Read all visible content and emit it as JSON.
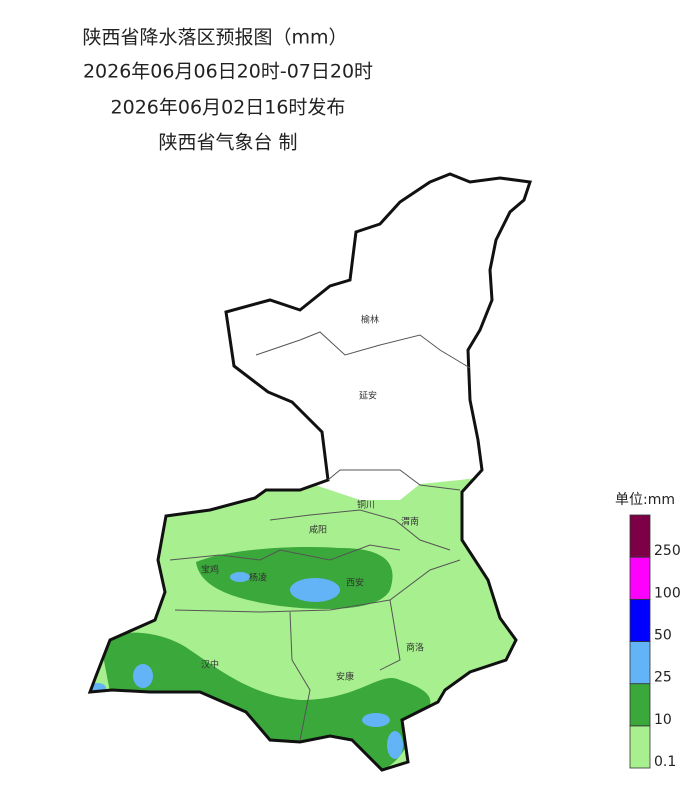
{
  "header": {
    "title": "陕西省降水落区预报图（mm）",
    "period": "2026年06月06日20时-07日20时",
    "issued": "2026年06月02日16时发布",
    "issuer": "陕西省气象台 制"
  },
  "cities": [
    "榆林",
    "延安",
    "铜川",
    "咸阳",
    "渭南",
    "宝鸡",
    "杨凌",
    "西安",
    "商洛",
    "汉中",
    "安康"
  ],
  "legend": {
    "title": "单位:mm",
    "levels": [
      {
        "label": "0.1",
        "color": "#a8f08f"
      },
      {
        "label": "10",
        "color": "#3aa83a"
      },
      {
        "label": "25",
        "color": "#62b4f6"
      },
      {
        "label": "50",
        "color": "#0000fe"
      },
      {
        "label": "100",
        "color": "#fe00fe"
      },
      {
        "label": "250",
        "color": "#7d0046"
      }
    ]
  }
}
